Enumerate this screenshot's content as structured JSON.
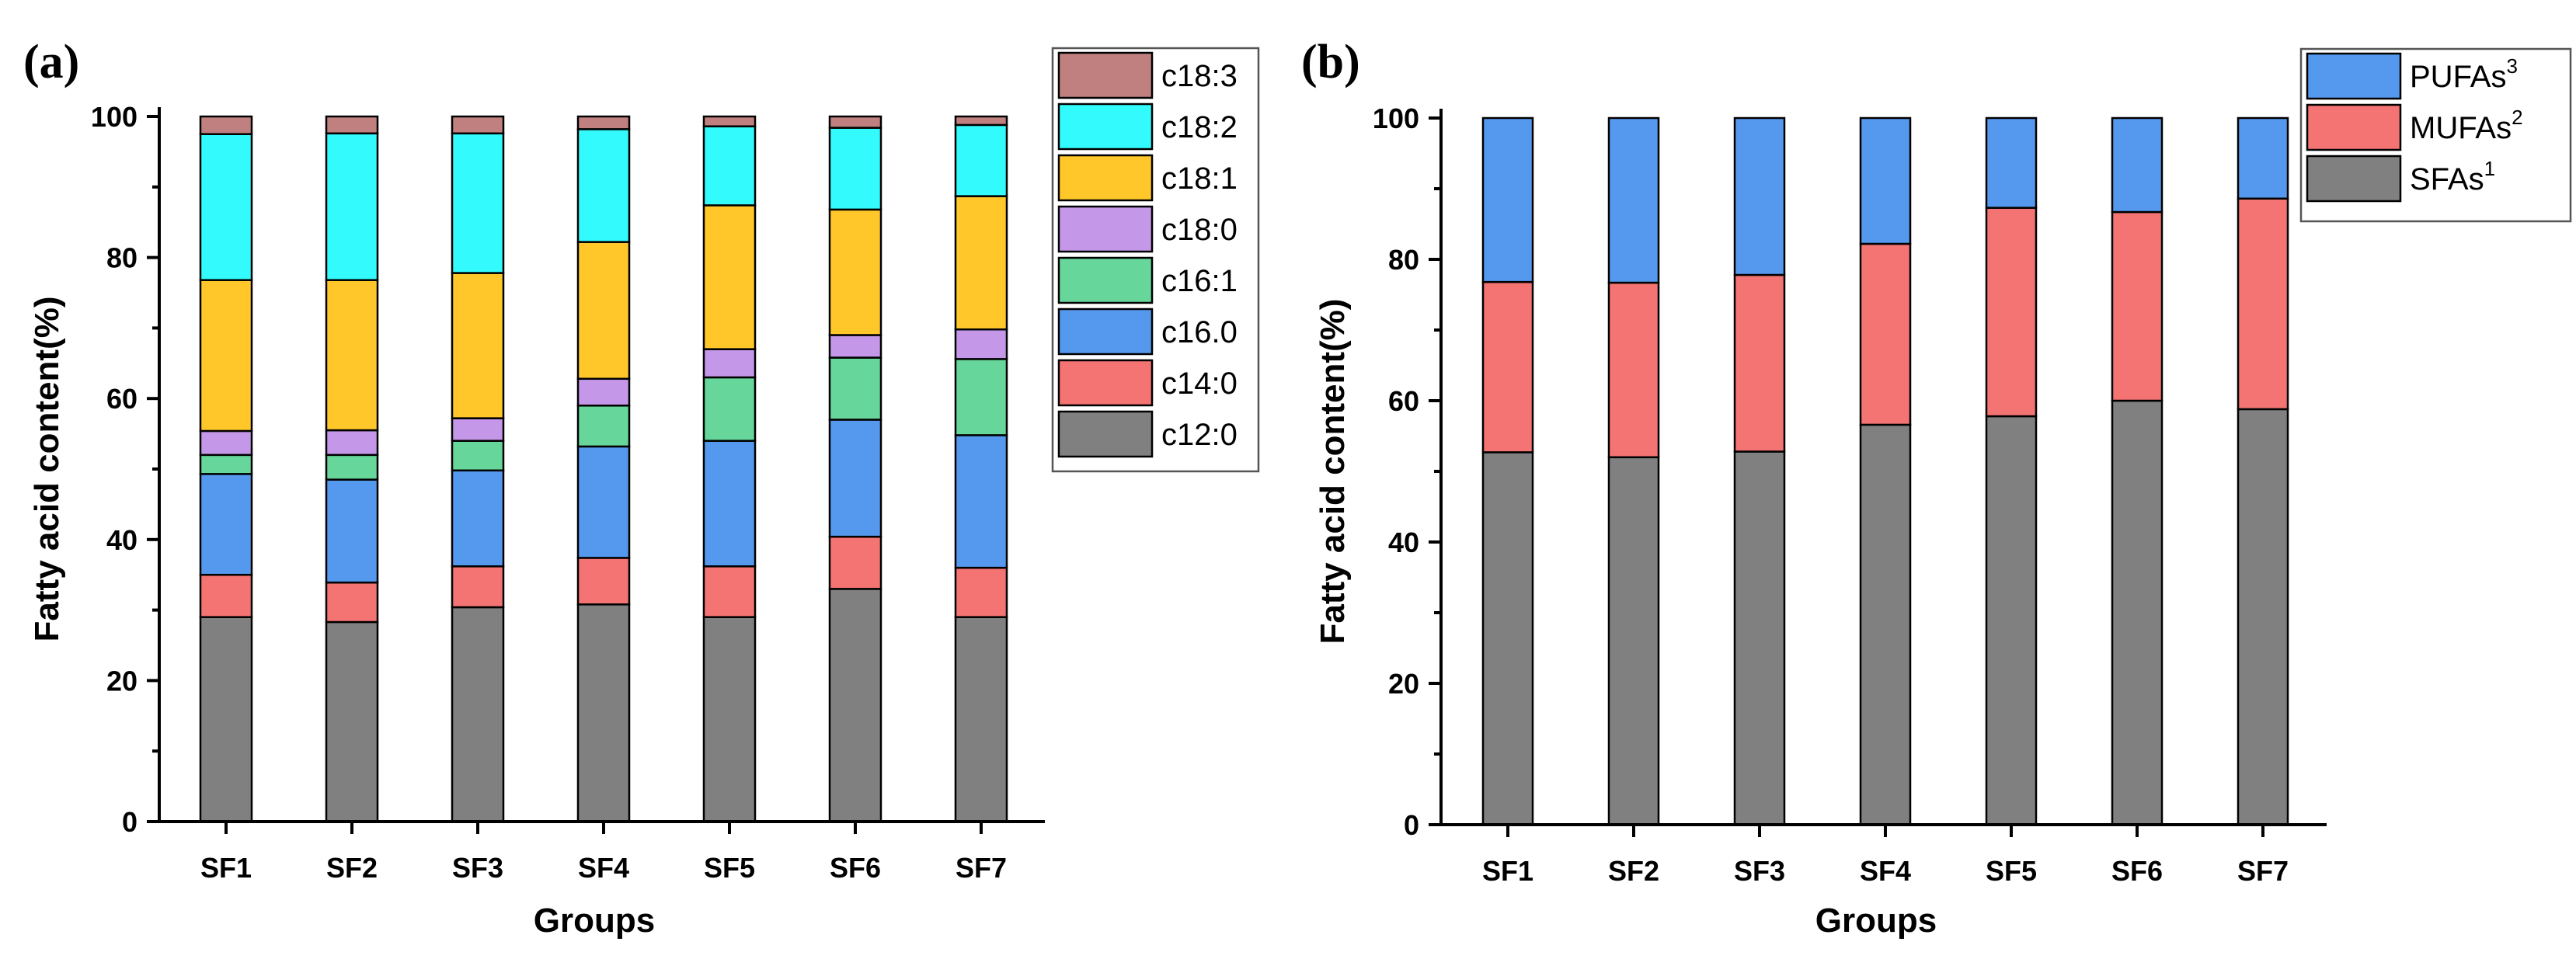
{
  "chart_data": [
    {
      "panel_label": "(a)",
      "type": "bar",
      "stacked": true,
      "categories": [
        "SF1",
        "SF2",
        "SF3",
        "SF4",
        "SF5",
        "SF6",
        "SF7"
      ],
      "xlabel": "Groups",
      "ylabel": "Fatty acid content(%)",
      "ylim": [
        0,
        100
      ],
      "yticks": [
        0,
        20,
        40,
        60,
        80,
        100
      ],
      "legend_position": "right",
      "series": [
        {
          "name": "c12:0",
          "color": "#808080",
          "values": [
            29.0,
            28.3,
            30.4,
            30.8,
            29.0,
            33.0,
            29.0
          ]
        },
        {
          "name": "c14:0",
          "color": "#F47373",
          "values": [
            6.0,
            5.6,
            5.8,
            6.6,
            7.2,
            7.4,
            7.0
          ]
        },
        {
          "name": "c16.0",
          "color": "#5599EE",
          "values": [
            14.3,
            14.6,
            13.6,
            15.8,
            17.8,
            16.6,
            18.8
          ]
        },
        {
          "name": "c16:1",
          "color": "#66D69A",
          "values": [
            2.7,
            3.5,
            4.2,
            5.8,
            9.0,
            8.8,
            10.8
          ]
        },
        {
          "name": "c18:0",
          "color": "#C497E8",
          "values": [
            3.4,
            3.5,
            3.2,
            3.8,
            4.0,
            3.2,
            4.2
          ]
        },
        {
          "name": "c18:1",
          "color": "#FFC72A",
          "values": [
            21.4,
            21.3,
            20.6,
            19.4,
            20.4,
            17.8,
            18.9
          ]
        },
        {
          "name": "c18:2",
          "color": "#33FBFD",
          "values": [
            20.7,
            20.8,
            19.8,
            16.0,
            11.2,
            11.6,
            10.1
          ]
        },
        {
          "name": "c18:3",
          "color": "#C08080",
          "values": [
            2.5,
            2.4,
            2.4,
            1.8,
            1.4,
            1.6,
            1.2
          ]
        }
      ]
    },
    {
      "panel_label": "(b)",
      "type": "bar",
      "stacked": true,
      "categories": [
        "SF1",
        "SF2",
        "SF3",
        "SF4",
        "SF5",
        "SF6",
        "SF7"
      ],
      "xlabel": "Groups",
      "ylabel": "Fatty acid content(%)",
      "ylim": [
        0,
        100
      ],
      "yticks": [
        0,
        20,
        40,
        60,
        80,
        100
      ],
      "legend_position": "top-right",
      "series": [
        {
          "name": "SFAs",
          "sup": "1",
          "color": "#808080",
          "values": [
            52.7,
            52.0,
            52.8,
            56.6,
            57.8,
            60.0,
            58.8
          ]
        },
        {
          "name": "MUFAs",
          "sup": "2",
          "color": "#F47373",
          "values": [
            24.1,
            24.7,
            25.0,
            25.6,
            29.5,
            26.7,
            29.8
          ]
        },
        {
          "name": "PUFAs",
          "sup": "3",
          "color": "#5599EE",
          "values": [
            23.2,
            23.3,
            22.2,
            17.8,
            12.7,
            13.3,
            11.4
          ]
        }
      ]
    }
  ]
}
